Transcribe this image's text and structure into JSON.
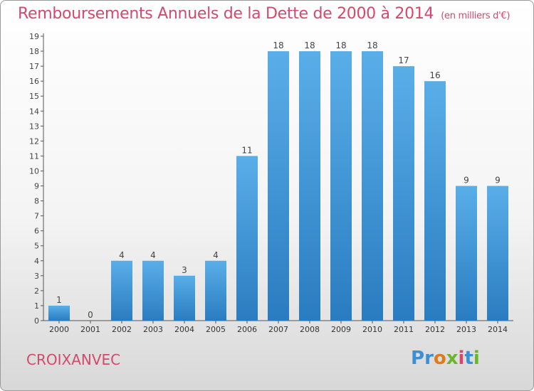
{
  "header": {
    "title": "Remboursements Annuels de la Dette de 2000 à 2014",
    "unit": "(en milliers d'€)"
  },
  "footer": {
    "commune": "CROIXANVEC",
    "brand": "Proxiti",
    "brand_colors": [
      "#3a8fd6",
      "#3a8fd6",
      "#e07a1a",
      "#6bb52d",
      "#d4496b",
      "#3a8fd6",
      "#6bb52d"
    ]
  },
  "chart_data": {
    "type": "bar",
    "title": "Remboursements Annuels de la Dette de 2000 à 2014",
    "subtitle": "(en milliers d'€)",
    "xlabel": "",
    "ylabel": "",
    "categories": [
      "2000",
      "2001",
      "2002",
      "2003",
      "2004",
      "2005",
      "2006",
      "2007",
      "2008",
      "2009",
      "2010",
      "2011",
      "2012",
      "2013",
      "2014"
    ],
    "values": [
      1,
      0,
      4,
      4,
      3,
      4,
      11,
      18,
      18,
      18,
      18,
      17,
      16,
      9,
      9
    ],
    "ylim": [
      0,
      19
    ],
    "yticks": [
      0,
      1,
      2,
      3,
      4,
      5,
      6,
      7,
      8,
      9,
      10,
      11,
      12,
      13,
      14,
      15,
      16,
      17,
      18,
      19
    ],
    "grid": false,
    "bar_color_top": "#5aaee8",
    "bar_color_bottom": "#2a7cc0",
    "title_color": "#d4496b"
  }
}
